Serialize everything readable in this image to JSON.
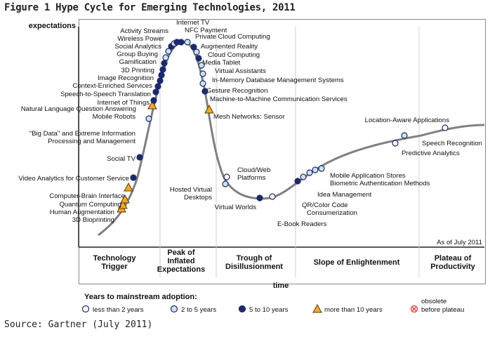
{
  "figure_title": "Figure 1 Hype Cycle for Emerging Technologies, 2011",
  "source": "Source: Gartner (July 2011)",
  "asof": "As of July 2011",
  "colors": {
    "curve": "#808080",
    "less2": "#ffffff",
    "two5": "#cfe0ee",
    "five10": "#1b2a6b",
    "more10": "#f0a830",
    "obsolete": "#d33"
  },
  "chart_data": {
    "type": "line",
    "title": "Hype Cycle for Emerging Technologies, 2011",
    "xlabel": "time",
    "ylabel": "expectations",
    "phases": [
      "Technology Trigger",
      "Peak of Inflated Expectations",
      "Trough of Disillusionment",
      "Slope of Enlightenment",
      "Plateau of Productivity"
    ],
    "legend_title": "Years to mainstream adoption:",
    "legend": [
      {
        "key": "less2",
        "label": "less than 2 years"
      },
      {
        "key": "two5",
        "label": "2 to 5 years"
      },
      {
        "key": "five10",
        "label": "5 to 10 years"
      },
      {
        "key": "more10",
        "label": "more than 10 years"
      },
      {
        "key": "obsolete",
        "label": "obsolete before plateau"
      }
    ],
    "technologies": [
      {
        "name": "3D Bioprinting",
        "cat": "more10"
      },
      {
        "name": "Human Augmentation",
        "cat": "more10"
      },
      {
        "name": "Quantum Computing",
        "cat": "more10"
      },
      {
        "name": "Computer-Brain Interface",
        "cat": "more10"
      },
      {
        "name": "Video Analytics for Customer Service",
        "cat": "five10"
      },
      {
        "name": "Social TV",
        "cat": "five10"
      },
      {
        "name": "\"Big Data\" and Extreme Information Processing and Management",
        "cat": "two5"
      },
      {
        "name": "Mobile Robots",
        "cat": "more10"
      },
      {
        "name": "Natural Language Question Answering",
        "cat": "five10"
      },
      {
        "name": "Internet of Things",
        "cat": "five10"
      },
      {
        "name": "Speech-to-Speech Translation",
        "cat": "five10"
      },
      {
        "name": "Context-Enriched Services",
        "cat": "five10"
      },
      {
        "name": "Image Recognition",
        "cat": "five10"
      },
      {
        "name": "3D Printing",
        "cat": "five10"
      },
      {
        "name": "Gamification",
        "cat": "five10"
      },
      {
        "name": "Group Buying",
        "cat": "two5"
      },
      {
        "name": "Social Analytics",
        "cat": "two5"
      },
      {
        "name": "Wireless Power",
        "cat": "five10"
      },
      {
        "name": "Activity Streams",
        "cat": "two5"
      },
      {
        "name": "Internet TV",
        "cat": "five10"
      },
      {
        "name": "NFC Payment",
        "cat": "five10"
      },
      {
        "name": "Private Cloud Computing",
        "cat": "two5"
      },
      {
        "name": "Augmented Reality",
        "cat": "five10"
      },
      {
        "name": "Cloud Computing",
        "cat": "two5"
      },
      {
        "name": "Media Tablet",
        "cat": "five10"
      },
      {
        "name": "Virtual Assistants",
        "cat": "two5"
      },
      {
        "name": "In-Memory Database Management Systems",
        "cat": "two5"
      },
      {
        "name": "Gesture Recognition",
        "cat": "two5"
      },
      {
        "name": "Machine-to-Machine Communication Services",
        "cat": "five10"
      },
      {
        "name": "Mesh Networks: Sensor",
        "cat": "more10"
      },
      {
        "name": "Cloud/Web Platforms",
        "cat": "less2"
      },
      {
        "name": "Hosted Virtual Desktops",
        "cat": "two5"
      },
      {
        "name": "Virtual Worlds",
        "cat": "five10"
      },
      {
        "name": "E-Book Readers",
        "cat": "less2"
      },
      {
        "name": "QR/Color Code",
        "cat": "five10"
      },
      {
        "name": "Consumerization",
        "cat": "two5"
      },
      {
        "name": "Idea Management",
        "cat": "two5"
      },
      {
        "name": "Biometric Authentication Methods",
        "cat": "two5"
      },
      {
        "name": "Mobile Application Stores",
        "cat": "two5"
      },
      {
        "name": "Predictive Analytics",
        "cat": "less2"
      },
      {
        "name": "Speech Recognition",
        "cat": "two5"
      },
      {
        "name": "Location-Aware Applications",
        "cat": "less2"
      }
    ]
  }
}
